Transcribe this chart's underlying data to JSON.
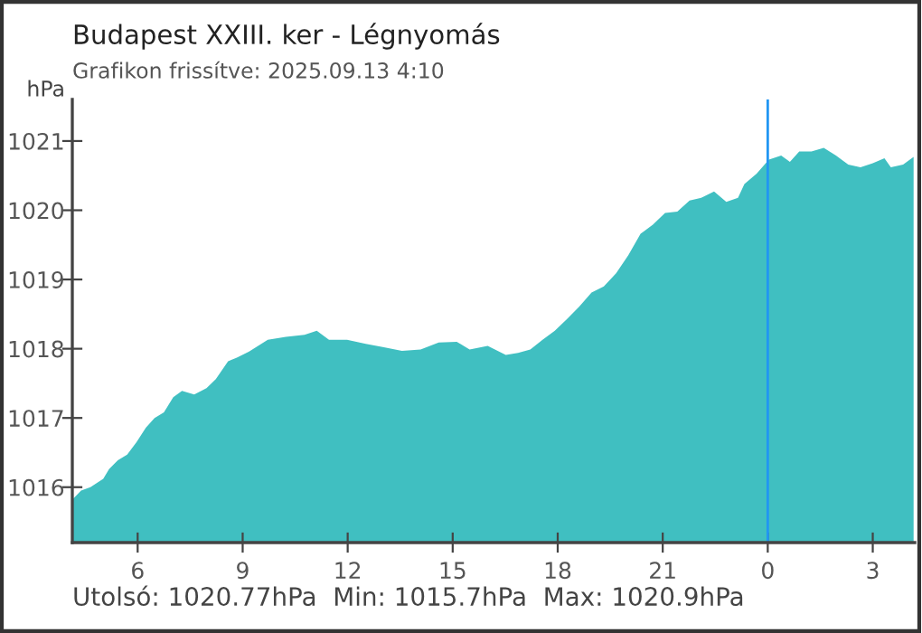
{
  "chart_data": {
    "type": "area",
    "title": "Budapest XXIII. ker - Légnyomás",
    "subtitle": "Grafikon frissítve: 2025.09.13 4:10",
    "ylabel": "hPa",
    "annotations": [
      "Utolsó: 1020.77hPa  Min: 1015.7hPa  Max: 1020.9hPa"
    ],
    "x": [
      "2025-09-12T04:08",
      "2025-09-12T04:23",
      "2025-09-12T04:39",
      "2025-09-12T05:01",
      "2025-09-12T05:11",
      "2025-09-12T05:26",
      "2025-09-12T05:42",
      "2025-09-12T05:58",
      "2025-09-12T06:14",
      "2025-09-12T06:29",
      "2025-09-12T06:45",
      "2025-09-12T07:01",
      "2025-09-12T07:16",
      "2025-09-12T07:37",
      "2025-09-12T07:58",
      "2025-09-12T08:14",
      "2025-09-12T08:35",
      "2025-09-12T08:50",
      "2025-09-12T09:11",
      "2025-09-12T09:43",
      "2025-09-12T10:14",
      "2025-09-12T10:46",
      "2025-09-12T11:07",
      "2025-09-12T11:28",
      "2025-09-12T11:59",
      "2025-09-12T12:31",
      "2025-09-12T13:02",
      "2025-09-12T13:33",
      "2025-09-12T14:05",
      "2025-09-12T14:36",
      "2025-09-12T15:07",
      "2025-09-12T15:29",
      "2025-09-12T16:00",
      "2025-09-12T16:31",
      "2025-09-12T16:52",
      "2025-09-12T17:13",
      "2025-09-12T17:34",
      "2025-09-12T17:55",
      "2025-09-12T18:16",
      "2025-09-12T18:37",
      "2025-09-12T18:58",
      "2025-09-12T19:19",
      "2025-09-12T19:40",
      "2025-09-12T20:01",
      "2025-09-12T20:22",
      "2025-09-12T20:43",
      "2025-09-12T21:04",
      "2025-09-12T21:25",
      "2025-09-12T21:46",
      "2025-09-12T22:06",
      "2025-09-12T22:28",
      "2025-09-12T22:49",
      "2025-09-12T23:09",
      "2025-09-12T23:20",
      "2025-09-12T23:41",
      "2025-09-13T00:02",
      "2025-09-13T00:23",
      "2025-09-13T00:38",
      "2025-09-13T00:54",
      "2025-09-13T01:15",
      "2025-09-13T01:36",
      "2025-09-13T01:57",
      "2025-09-13T02:18",
      "2025-09-13T02:39",
      "2025-09-13T03:00",
      "2025-09-13T03:20",
      "2025-09-13T03:31",
      "2025-09-13T03:52",
      "2025-09-13T04:10"
    ],
    "series": [
      {
        "color": "#40bfc1",
        "values": [
          1015.82,
          1015.95,
          1016.0,
          1016.12,
          1016.26,
          1016.39,
          1016.47,
          1016.65,
          1016.86,
          1017.0,
          1017.08,
          1017.3,
          1017.39,
          1017.34,
          1017.43,
          1017.56,
          1017.82,
          1017.87,
          1017.96,
          1018.13,
          1018.17,
          1018.2,
          1018.26,
          1018.13,
          1018.13,
          1018.07,
          1018.02,
          1017.97,
          1017.99,
          1018.09,
          1018.1,
          1017.99,
          1018.04,
          1017.91,
          1017.94,
          1017.99,
          1018.13,
          1018.26,
          1018.43,
          1018.61,
          1018.81,
          1018.9,
          1019.09,
          1019.35,
          1019.66,
          1019.79,
          1019.96,
          1019.98,
          1020.14,
          1020.18,
          1020.27,
          1020.12,
          1020.18,
          1020.38,
          1020.53,
          1020.73,
          1020.79,
          1020.7,
          1020.85,
          1020.85,
          1020.9,
          1020.79,
          1020.66,
          1020.62,
          1020.68,
          1020.75,
          1020.62,
          1020.66,
          1020.77
        ]
      }
    ],
    "xlim": [
      "2025-09-12T04:08",
      "2025-09-13T04:12"
    ],
    "xticks": [
      {
        "value": "2025-09-12T06:00",
        "label": "6"
      },
      {
        "value": "2025-09-12T09:00",
        "label": "9"
      },
      {
        "value": "2025-09-12T12:00",
        "label": "12"
      },
      {
        "value": "2025-09-12T15:00",
        "label": "15"
      },
      {
        "value": "2025-09-12T18:00",
        "label": "18"
      },
      {
        "value": "2025-09-12T21:00",
        "label": "21"
      },
      {
        "value": "2025-09-13T00:00",
        "label": "0"
      },
      {
        "value": "2025-09-13T03:00",
        "label": "3"
      }
    ],
    "ylim": [
      1015.2,
      1021.6
    ],
    "yticks": [
      1016,
      1017,
      1018,
      1019,
      1020,
      1021
    ],
    "ref_lines": [
      {
        "axis": "x",
        "value": "2025-09-13T00:00",
        "color": "#2196f3"
      }
    ],
    "grid": false
  }
}
